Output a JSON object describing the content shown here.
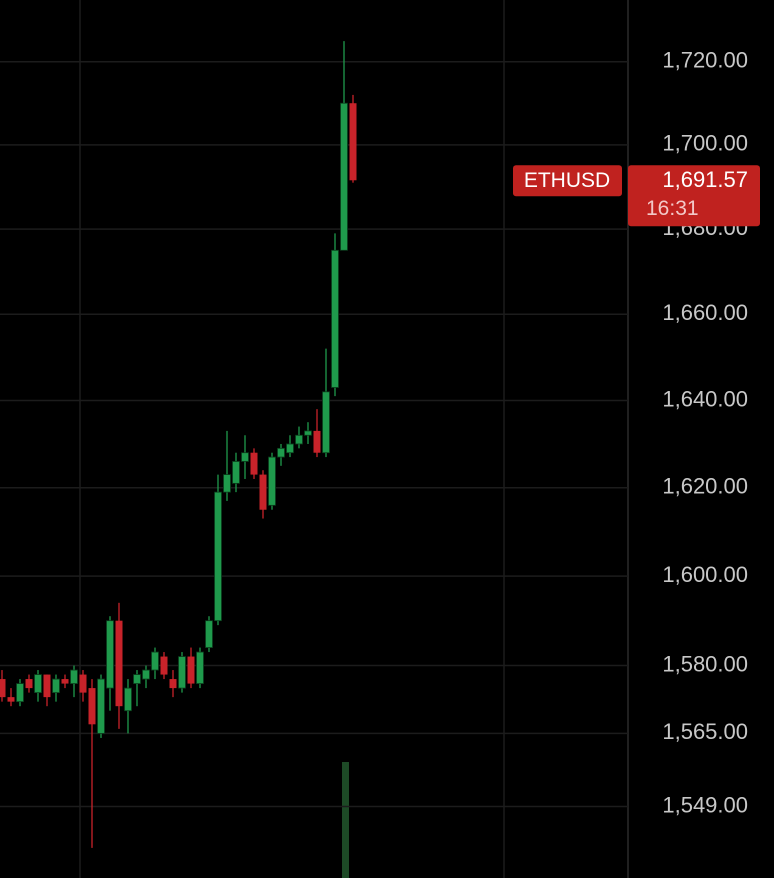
{
  "chart_data": {
    "type": "candlestick",
    "log_scale": true,
    "grid": true,
    "up_color": "#1f9a4c",
    "down_color": "#c8232a",
    "badge_color": "#c0221f",
    "ylim": [
      1533.5,
      1735
    ],
    "yticks": [
      {
        "value": 1720,
        "label": "1,720.00"
      },
      {
        "value": 1700,
        "label": "1,700.00"
      },
      {
        "value": 1680,
        "label": "1,680.00"
      },
      {
        "value": 1660,
        "label": "1,660.00"
      },
      {
        "value": 1640,
        "label": "1,640.00"
      },
      {
        "value": 1620,
        "label": "1,620.00"
      },
      {
        "value": 1600,
        "label": "1,600.00"
      },
      {
        "value": 1580,
        "label": "1,580.00"
      },
      {
        "value": 1565,
        "label": "1,565.00"
      },
      {
        "value": 1549,
        "label": "1,549.00"
      }
    ],
    "open": [
      1577,
      1573,
      1572,
      1577,
      1574,
      1578,
      1574,
      1577,
      1576,
      1578,
      1575,
      1565,
      1575,
      1590,
      1570,
      1576,
      1577,
      1579,
      1582,
      1577,
      1575,
      1582,
      1576,
      1584,
      1590,
      1619,
      1621,
      1626,
      1628,
      1623,
      1616,
      1627,
      1628,
      1630,
      1632,
      1633,
      1628,
      1643,
      1675,
      1710
    ],
    "high": [
      1579,
      1575,
      1577,
      1578,
      1579,
      1578,
      1578,
      1578,
      1580,
      1579,
      1577,
      1578,
      1591,
      1594,
      1577,
      1579,
      1580,
      1584,
      1583,
      1579,
      1583,
      1584,
      1584,
      1591,
      1623,
      1633,
      1628,
      1632,
      1629,
      1624,
      1628,
      1630,
      1632,
      1634,
      1635,
      1638,
      1652,
      1679,
      1725,
      1712
    ],
    "low": [
      1572,
      1571,
      1571,
      1574,
      1572,
      1571,
      1572,
      1575,
      1573,
      1572,
      1540,
      1564,
      1570,
      1566,
      1565,
      1571,
      1575,
      1577,
      1577,
      1573,
      1574,
      1575,
      1575,
      1583,
      1589,
      1617,
      1619,
      1622,
      1622,
      1613,
      1615,
      1625,
      1627,
      1629,
      1630,
      1627,
      1627,
      1641,
      1675,
      1691
    ],
    "close": [
      1573,
      1572,
      1576,
      1575,
      1578,
      1573,
      1577,
      1576,
      1579,
      1574,
      1567,
      1577,
      1590,
      1571,
      1575,
      1578,
      1579,
      1583,
      1578,
      1575,
      1582,
      1576,
      1583,
      1590,
      1619,
      1623,
      1626,
      1628,
      1623,
      1615,
      1627,
      1629,
      1630,
      1632,
      1633,
      1628,
      1642,
      1675,
      1710,
      1691.57
    ],
    "symbol": "ETHUSD",
    "last_price": {
      "value": 1691.57,
      "label": "1,691.57"
    },
    "countdown": "16:31"
  }
}
